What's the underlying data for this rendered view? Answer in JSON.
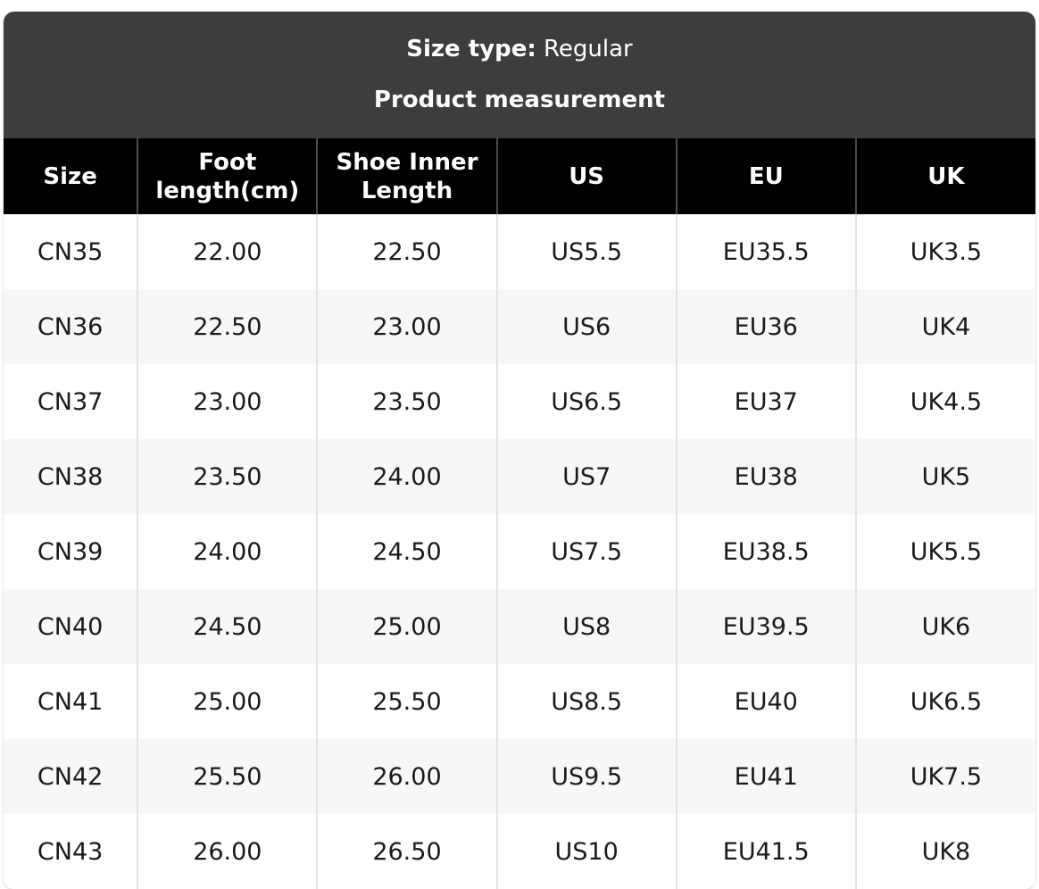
{
  "header": {
    "size_type_label": "Size type:",
    "size_type_value": " Regular",
    "title": "Product measurement"
  },
  "table": {
    "columns": [
      "Size",
      "Foot length(cm)",
      "Shoe Inner Length",
      "US",
      "EU",
      "UK"
    ],
    "rows": [
      [
        "CN35",
        "22.00",
        "22.50",
        "US5.5",
        "EU35.5",
        "UK3.5"
      ],
      [
        "CN36",
        "22.50",
        "23.00",
        "US6",
        "EU36",
        "UK4"
      ],
      [
        "CN37",
        "23.00",
        "23.50",
        "US6.5",
        "EU37",
        "UK4.5"
      ],
      [
        "CN38",
        "23.50",
        "24.00",
        "US7",
        "EU38",
        "UK5"
      ],
      [
        "CN39",
        "24.00",
        "24.50",
        "US7.5",
        "EU38.5",
        "UK5.5"
      ],
      [
        "CN40",
        "24.50",
        "25.00",
        "US8",
        "EU39.5",
        "UK6"
      ],
      [
        "CN41",
        "25.00",
        "25.50",
        "US8.5",
        "EU40",
        "UK6.5"
      ],
      [
        "CN42",
        "25.50",
        "26.00",
        "US9.5",
        "EU41",
        "UK7.5"
      ],
      [
        "CN43",
        "26.00",
        "26.50",
        "US10",
        "EU41.5",
        "UK8"
      ]
    ]
  },
  "colors": {
    "header_background": "#3d3d3d",
    "column_header_background": "#000000",
    "alt_row_background": "#f7f7f7",
    "body_divider": "#e3e3e3",
    "header_divider": "#4b4b4b",
    "text": "#1a1a1a",
    "header_text": "#ffffff"
  }
}
